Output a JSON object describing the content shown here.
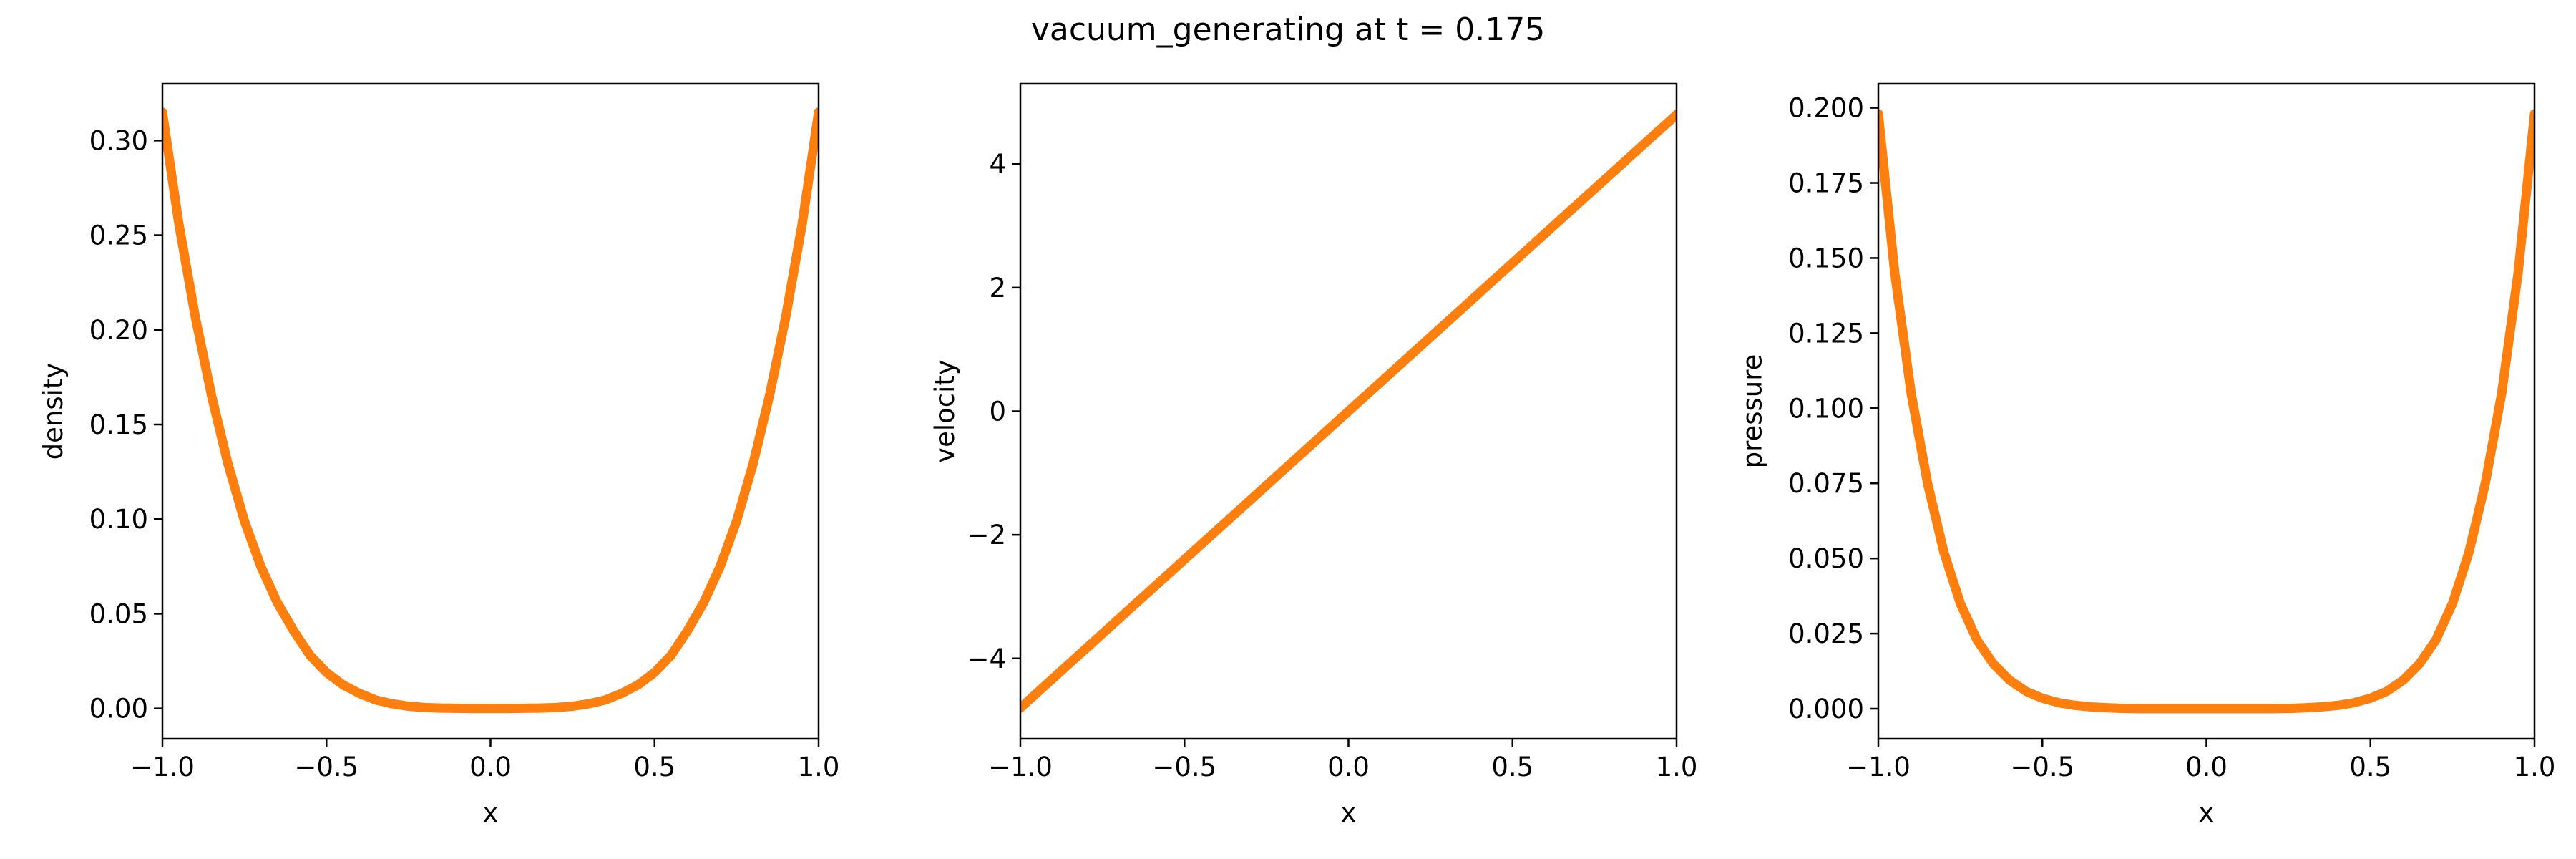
{
  "figure": {
    "title": "vacuum_generating at t = 0.175"
  },
  "chart_data": [
    {
      "type": "line",
      "xlabel": "x",
      "ylabel": "density",
      "xlim": [
        -1.0,
        1.0
      ],
      "ylim": [
        -0.016,
        0.33
      ],
      "xticks": [
        -1.0,
        -0.5,
        0.0,
        0.5,
        1.0
      ],
      "xtick_labels": [
        "−1.0",
        "−0.5",
        "0.0",
        "0.5",
        "1.0"
      ],
      "yticks": [
        0.0,
        0.05,
        0.1,
        0.15,
        0.2,
        0.25,
        0.3
      ],
      "ytick_labels": [
        "0.00",
        "0.05",
        "0.10",
        "0.15",
        "0.20",
        "0.25",
        "0.30"
      ],
      "series_color": "#ff7f0e",
      "series": [
        {
          "x": [
            -1.0,
            -0.95,
            -0.9,
            -0.85,
            -0.8,
            -0.75,
            -0.7,
            -0.65,
            -0.6,
            -0.55,
            -0.5,
            -0.45,
            -0.4,
            -0.35,
            -0.3,
            -0.25,
            -0.2,
            -0.15,
            -0.1,
            -0.05,
            0.0,
            0.05,
            0.1,
            0.15,
            0.2,
            0.25,
            0.3,
            0.35,
            0.4,
            0.45,
            0.5,
            0.55,
            0.6,
            0.65,
            0.7,
            0.75,
            0.8,
            0.85,
            0.9,
            0.95,
            1.0
          ],
          "y": [
            0.315,
            0.256,
            0.207,
            0.165,
            0.129,
            0.099,
            0.075,
            0.056,
            0.041,
            0.028,
            0.019,
            0.0125,
            0.008,
            0.0045,
            0.0025,
            0.0012,
            0.0005,
            0.0002,
            0.0001,
            0.0,
            0.0,
            0.0,
            0.0001,
            0.0002,
            0.0005,
            0.0012,
            0.0025,
            0.0045,
            0.008,
            0.0125,
            0.019,
            0.028,
            0.041,
            0.056,
            0.075,
            0.099,
            0.129,
            0.165,
            0.207,
            0.256,
            0.315
          ]
        }
      ]
    },
    {
      "type": "line",
      "xlabel": "x",
      "ylabel": "velocity",
      "xlim": [
        -1.0,
        1.0
      ],
      "ylim": [
        -5.3,
        5.3
      ],
      "xticks": [
        -1.0,
        -0.5,
        0.0,
        0.5,
        1.0
      ],
      "xtick_labels": [
        "−1.0",
        "−0.5",
        "0.0",
        "0.5",
        "1.0"
      ],
      "yticks": [
        -4,
        -2,
        0,
        2,
        4
      ],
      "ytick_labels": [
        "−4",
        "−2",
        "0",
        "2",
        "4"
      ],
      "series_color": "#ff7f0e",
      "series": [
        {
          "x": [
            -1.0,
            0.0,
            1.0
          ],
          "y": [
            -4.8,
            0.0,
            4.8
          ]
        }
      ]
    },
    {
      "type": "line",
      "xlabel": "x",
      "ylabel": "pressure",
      "xlim": [
        -1.0,
        1.0
      ],
      "ylim": [
        -0.01,
        0.208
      ],
      "xticks": [
        -1.0,
        -0.5,
        0.0,
        0.5,
        1.0
      ],
      "xtick_labels": [
        "−1.0",
        "−0.5",
        "0.0",
        "0.5",
        "1.0"
      ],
      "yticks": [
        0.0,
        0.025,
        0.05,
        0.075,
        0.1,
        0.125,
        0.15,
        0.175,
        0.2
      ],
      "ytick_labels": [
        "0.000",
        "0.025",
        "0.050",
        "0.075",
        "0.100",
        "0.125",
        "0.150",
        "0.175",
        "0.200"
      ],
      "series_color": "#ff7f0e",
      "series": [
        {
          "x": [
            -1.0,
            -0.95,
            -0.9,
            -0.85,
            -0.8,
            -0.75,
            -0.7,
            -0.65,
            -0.6,
            -0.55,
            -0.5,
            -0.45,
            -0.4,
            -0.35,
            -0.3,
            -0.25,
            -0.2,
            -0.15,
            -0.1,
            -0.05,
            0.0,
            0.05,
            0.1,
            0.15,
            0.2,
            0.25,
            0.3,
            0.35,
            0.4,
            0.45,
            0.5,
            0.55,
            0.6,
            0.65,
            0.7,
            0.75,
            0.8,
            0.85,
            0.9,
            0.95,
            1.0
          ],
          "y": [
            0.198,
            0.145,
            0.105,
            0.075,
            0.052,
            0.035,
            0.023,
            0.015,
            0.0095,
            0.0058,
            0.0035,
            0.002,
            0.0011,
            0.0006,
            0.0003,
            0.0001,
            0.0,
            0.0,
            0.0,
            0.0,
            0.0,
            0.0,
            0.0,
            0.0,
            0.0,
            0.0001,
            0.0003,
            0.0006,
            0.0011,
            0.002,
            0.0035,
            0.0058,
            0.0095,
            0.015,
            0.023,
            0.035,
            0.052,
            0.075,
            0.105,
            0.145,
            0.198
          ]
        }
      ]
    }
  ]
}
